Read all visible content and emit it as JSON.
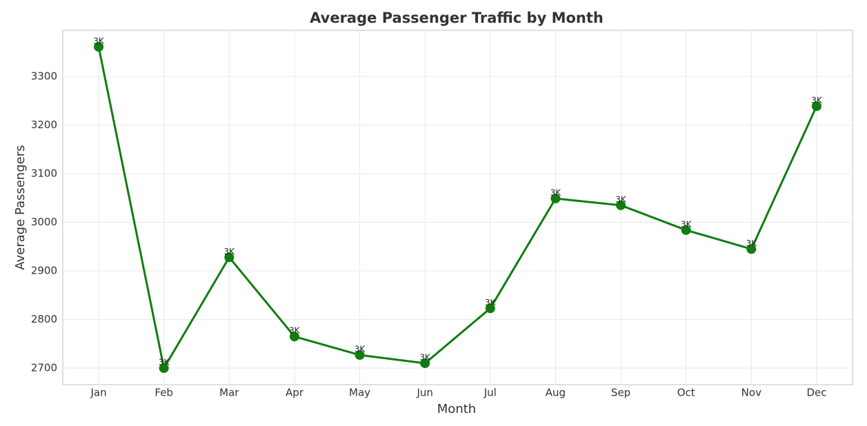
{
  "chart_data": {
    "type": "line",
    "title": "Average Passenger Traffic by Month",
    "x_label": "Month",
    "y_label": "Average Passengers",
    "categories": [
      "Jan",
      "Feb",
      "Mar",
      "Apr",
      "May",
      "Jun",
      "Jul",
      "Aug",
      "Sep",
      "Oct",
      "Nov",
      "Dec"
    ],
    "values": [
      3361,
      2700,
      2928,
      2765,
      2727,
      2710,
      2823,
      3049,
      3035,
      2984,
      2945,
      3239
    ],
    "value_labels": [
      "3K",
      "3K",
      "3K",
      "3K",
      "3K",
      "3K",
      "3K",
      "3K",
      "3K",
      "3K",
      "3K",
      "3K"
    ],
    "color": "#0f7d0f",
    "ylim": [
      2666,
      3395
    ],
    "yticks": [
      2700,
      2800,
      2900,
      3000,
      3100,
      3200,
      3300
    ],
    "grid": true
  }
}
